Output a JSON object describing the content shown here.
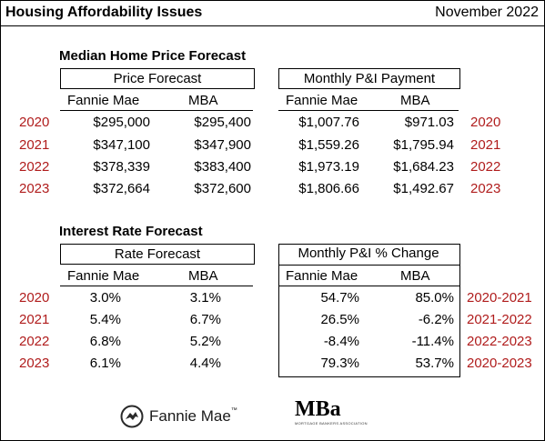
{
  "header": {
    "title": "Housing Affordability Issues",
    "date": "November 2022"
  },
  "price_section": {
    "title": "Median Home Price Forecast",
    "left_box_label": "Price Forecast",
    "right_box_label": "Monthly P&I Payment",
    "col_fannie": "Fannie Mae",
    "col_mba": "MBA",
    "rows": [
      {
        "year": "2020",
        "fm_price": "$295,000",
        "mba_price": "$295,400",
        "fm_pi": "$1,007.76",
        "mba_pi": "$971.03",
        "right_year": "2020"
      },
      {
        "year": "2021",
        "fm_price": "$347,100",
        "mba_price": "$347,900",
        "fm_pi": "$1,559.26",
        "mba_pi": "$1,795.94",
        "right_year": "2021"
      },
      {
        "year": "2022",
        "fm_price": "$378,339",
        "mba_price": "$383,400",
        "fm_pi": "$1,973.19",
        "mba_pi": "$1,684.23",
        "right_year": "2022"
      },
      {
        "year": "2023",
        "fm_price": "$372,664",
        "mba_price": "$372,600",
        "fm_pi": "$1,806.66",
        "mba_pi": "$1,492.67",
        "right_year": "2023"
      }
    ]
  },
  "rate_section": {
    "title": "Interest Rate Forecast",
    "left_box_label": "Rate Forecast",
    "right_box_label": "Monthly P&I % Change",
    "col_fannie": "Fannie Mae",
    "col_mba": "MBA",
    "rows": [
      {
        "year": "2020",
        "fm_rate": "3.0%",
        "mba_rate": "3.1%",
        "fm_chg": "54.7%",
        "mba_chg": "85.0%",
        "period": "2020-2021"
      },
      {
        "year": "2021",
        "fm_rate": "5.4%",
        "mba_rate": "6.7%",
        "fm_chg": "26.5%",
        "mba_chg": "-6.2%",
        "period": "2021-2022"
      },
      {
        "year": "2022",
        "fm_rate": "6.8%",
        "mba_rate": "5.2%",
        "fm_chg": "-8.4%",
        "mba_chg": "-11.4%",
        "period": "2022-2023"
      },
      {
        "year": "2023",
        "fm_rate": "6.1%",
        "mba_rate": "4.4%",
        "fm_chg": "79.3%",
        "mba_chg": "53.7%",
        "period": "2020-2023"
      }
    ]
  },
  "logos": {
    "fannie": "Fannie Mae",
    "fannie_tm": "™",
    "mba": "MBa",
    "mba_sub": "MORTGAGE BANKERS ASSOCIATION",
    "year_color": "#b01c1c"
  }
}
